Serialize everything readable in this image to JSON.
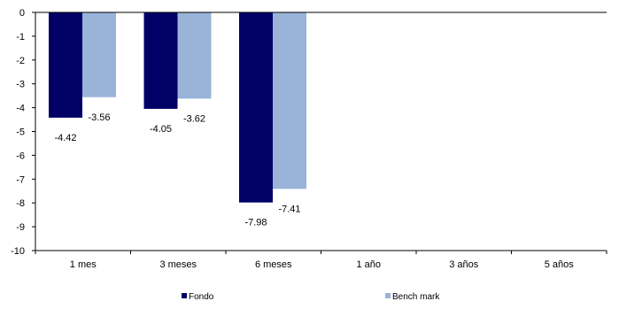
{
  "chart_data": {
    "type": "bar",
    "categories": [
      "1 mes",
      "3 meses",
      "6 meses",
      "1 año",
      "3 años",
      "5 años"
    ],
    "series": [
      {
        "name": "Fondo",
        "values": [
          -4.42,
          -4.05,
          -7.98,
          null,
          null,
          null
        ],
        "color": "#000066"
      },
      {
        "name": "Bench mark",
        "values": [
          -3.56,
          -3.62,
          -7.41,
          null,
          null,
          null
        ],
        "color": "#99b3d9"
      }
    ],
    "y_ticks": [
      "0",
      "-1",
      "-2",
      "-3",
      "-4",
      "-5",
      "-6",
      "-7",
      "-8",
      "-9",
      "-10"
    ],
    "data_labels": [
      [
        "-4.42",
        "-4.05",
        "-7.98",
        "",
        "",
        ""
      ],
      [
        "-3.56",
        "-3.62",
        "-7.41",
        "",
        "",
        ""
      ]
    ],
    "ylim": [
      -10,
      0
    ],
    "grid": false,
    "legend_position": "bottom",
    "title": "",
    "xlabel": "",
    "ylabel": ""
  }
}
